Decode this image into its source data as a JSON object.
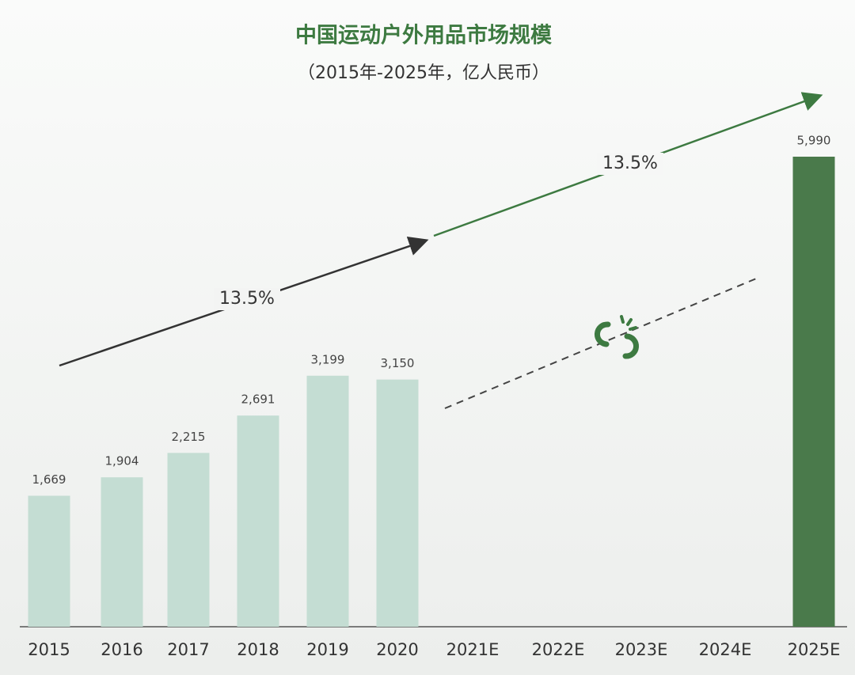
{
  "chart_data": {
    "type": "bar",
    "title": "中国运动户外用品市场规模",
    "subtitle": "（2015年-2025年，亿人民币）",
    "categories": [
      "2015",
      "2016",
      "2017",
      "2018",
      "2019",
      "2020",
      "2021E",
      "2022E",
      "2023E",
      "2024E",
      "2025E"
    ],
    "values": [
      1669,
      1904,
      2215,
      2691,
      3199,
      3150,
      null,
      null,
      null,
      null,
      5990
    ],
    "value_labels": [
      "1,669",
      "1,904",
      "2,215",
      "2,691",
      "3,199",
      "3,150",
      null,
      null,
      null,
      null,
      "5,990"
    ],
    "colors": [
      "#c4ddd3",
      "#c4ddd3",
      "#c4ddd3",
      "#c4ddd3",
      "#c4ddd3",
      "#c4ddd3",
      null,
      null,
      null,
      null,
      "#4a7a4b"
    ],
    "annotations": [
      "13.5%",
      "13.5%"
    ]
  }
}
